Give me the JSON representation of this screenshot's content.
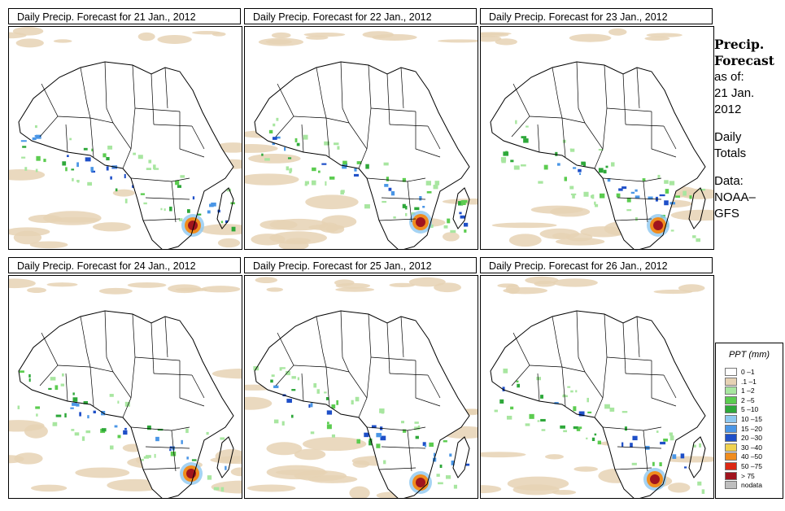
{
  "panels": [
    {
      "title": "Daily Precip. Forecast  for  21 Jan., 2012"
    },
    {
      "title": "Daily Precip. Forecast  for  22 Jan., 2012"
    },
    {
      "title": "Daily Precip. Forecast  for  23 Jan., 2012"
    },
    {
      "title": "Daily Precip. Forecast  for  24 Jan., 2012"
    },
    {
      "title": "Daily Precip. Forecast  for  25 Jan., 2012"
    },
    {
      "title": "Daily Precip. Forecast  for  26 Jan., 2012"
    }
  ],
  "sidebar": {
    "heading_line1": "Precip.",
    "heading_line2": "Forecast",
    "asof_line1": "as of:",
    "asof_line2": "21 Jan.",
    "asof_line3": "2012",
    "totals_line1": "Daily",
    "totals_line2": "Totals",
    "data_line1": "Data:",
    "data_line2": "NOAA–",
    "data_line3": "GFS"
  },
  "legend": {
    "title": "PPT (mm)",
    "items": [
      {
        "label": "0 –1",
        "color": "#ffffff"
      },
      {
        "label": ".1 –1",
        "color": "#e6d2b4"
      },
      {
        "label": "1 –2",
        "color": "#a8e6a0"
      },
      {
        "label": "2 –5",
        "color": "#5ccc50"
      },
      {
        "label": "5 –10",
        "color": "#2ea83a"
      },
      {
        "label": "10 –15",
        "color": "#8ec8f0"
      },
      {
        "label": "15 –20",
        "color": "#4a96e6"
      },
      {
        "label": "20 –30",
        "color": "#1e4fc8"
      },
      {
        "label": "30 –40",
        "color": "#f0d250"
      },
      {
        "label": "40 –50",
        "color": "#f08c1e"
      },
      {
        "label": "50 –75",
        "color": "#dc2814"
      },
      {
        "label": "> 75",
        "color": "#a0141e"
      },
      {
        "label": "nodata",
        "color": "#bebebe"
      }
    ]
  }
}
